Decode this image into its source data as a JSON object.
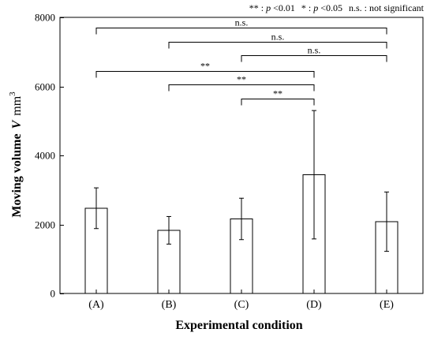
{
  "legend": {
    "sig_2_mark": "**",
    "sig_2_sep": " : ",
    "sig_2_p": "p",
    "sig_2_thresh": " <0.01",
    "sig_1_mark": "*",
    "sig_1_sep": " : ",
    "sig_1_p": "p",
    "sig_1_thresh": " <0.05",
    "ns_text": "n.s. : not significant"
  },
  "chart_data": {
    "type": "bar",
    "categories": [
      "(A)",
      "(B)",
      "(C)",
      "(D)",
      "(E)"
    ],
    "values": [
      2470,
      1830,
      2160,
      3440,
      2080
    ],
    "error_upper": [
      3060,
      2230,
      2760,
      5300,
      2940
    ],
    "error_lower": [
      1880,
      1430,
      1560,
      1580,
      1220
    ],
    "ylim": [
      0,
      8000
    ],
    "yticks": [
      0,
      2000,
      4000,
      6000,
      8000
    ],
    "ytick_labels": [
      "0",
      "2000",
      "4000",
      "6000",
      "8000"
    ],
    "xlabel": "Experimental condition",
    "ylabel_main": "Moving volume",
    "ylabel_symbol": "V",
    "ylabel_unit": "mm",
    "ylabel_exp": "3",
    "bar_color": "#ffffff",
    "edge_color": "#000000",
    "grid": false,
    "comparisons": [
      {
        "from": 0,
        "to": 4,
        "level": 7700,
        "label": "n.s."
      },
      {
        "from": 1,
        "to": 4,
        "level": 7300,
        "label": "n.s."
      },
      {
        "from": 2,
        "to": 4,
        "level": 6900,
        "label": "n.s."
      },
      {
        "from": 0,
        "to": 3,
        "level": 6450,
        "label": "**"
      },
      {
        "from": 1,
        "to": 3,
        "level": 6050,
        "label": "**"
      },
      {
        "from": 2,
        "to": 3,
        "level": 5650,
        "label": "**"
      }
    ]
  }
}
